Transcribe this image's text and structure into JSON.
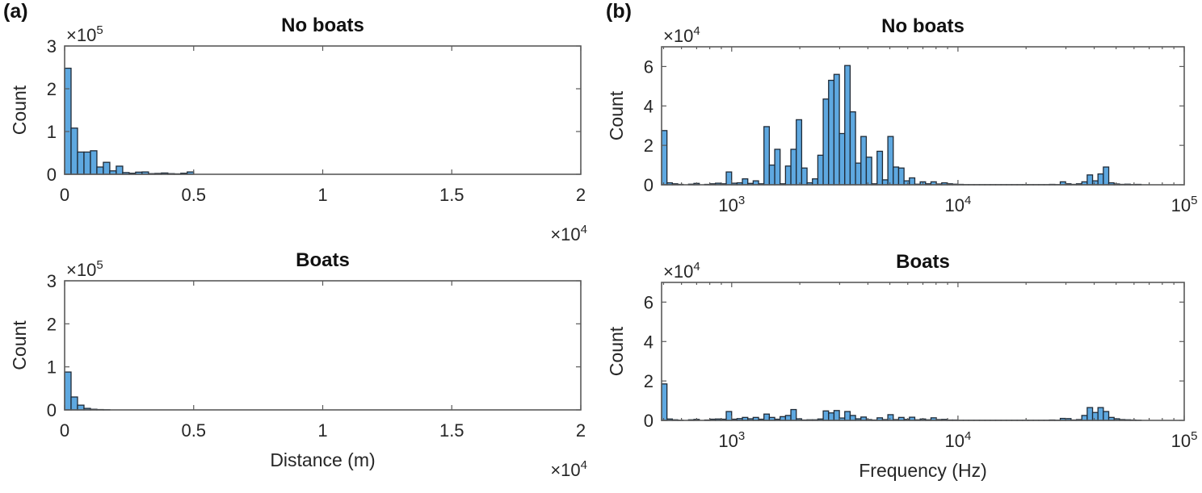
{
  "figure": {
    "panels": [
      {
        "id": "a",
        "label": "(a)"
      },
      {
        "id": "b",
        "label": "(b)"
      }
    ]
  },
  "chart_data": [
    {
      "panel": "(a)",
      "type": "bar",
      "subtype": "histogram",
      "title": "No boats",
      "xlabel": "",
      "ylabel": "Count",
      "x_scale": "linear",
      "x_exponent_label": "×10^4",
      "y_exponent_label": "×10^5",
      "xlim": [
        0,
        20000
      ],
      "ylim": [
        0,
        300000
      ],
      "xticks": [
        0,
        5000,
        10000,
        15000,
        20000
      ],
      "xtick_labels": [
        "0",
        "0.5",
        "1",
        "1.5",
        "2"
      ],
      "yticks": [
        0,
        100000,
        200000,
        300000
      ],
      "ytick_labels": [
        "0",
        "1",
        "2",
        "3"
      ],
      "bin_width": 250,
      "bin_start": 0,
      "values": [
        248000,
        108000,
        52000,
        52000,
        55000,
        17000,
        28000,
        8000,
        19000,
        4000,
        2500,
        5000,
        5500,
        1500,
        2000,
        3000,
        1500,
        1000,
        2500,
        5500
      ],
      "grid": false,
      "bar_color": "#5ea8e0"
    },
    {
      "panel": "(a)",
      "type": "bar",
      "subtype": "histogram",
      "title": "Boats",
      "xlabel": "Distance (m)",
      "ylabel": "Count",
      "x_scale": "linear",
      "x_exponent_label": "×10^4",
      "y_exponent_label": "×10^5",
      "xlim": [
        0,
        20000
      ],
      "ylim": [
        0,
        300000
      ],
      "xticks": [
        0,
        5000,
        10000,
        15000,
        20000
      ],
      "xtick_labels": [
        "0",
        "0.5",
        "1",
        "1.5",
        "2"
      ],
      "yticks": [
        0,
        100000,
        200000,
        300000
      ],
      "ytick_labels": [
        "0",
        "1",
        "2",
        "3"
      ],
      "bin_width": 250,
      "bin_start": 0,
      "values": [
        88000,
        30000,
        11000,
        3500,
        1500,
        800,
        400
      ],
      "grid": false,
      "bar_color": "#5ea8e0"
    },
    {
      "panel": "(b)",
      "type": "bar",
      "subtype": "histogram",
      "title": "No boats",
      "xlabel": "",
      "ylabel": "Count",
      "x_scale": "log",
      "y_exponent_label": "×10^4",
      "xlim": [
        490,
        100000
      ],
      "ylim": [
        0,
        70000
      ],
      "xticks": [
        1000,
        10000,
        100000
      ],
      "xtick_labels": [
        "10^3",
        "10^4",
        "10^5"
      ],
      "yticks": [
        0,
        20000,
        40000,
        60000
      ],
      "ytick_labels": [
        "0",
        "2",
        "4",
        "6"
      ],
      "bins_per_decade": 42,
      "bin_start": 490,
      "values": [
        27500,
        1000,
        500,
        200,
        0,
        300,
        700,
        0,
        200,
        500,
        800,
        500,
        6500,
        800,
        1000,
        3000,
        700,
        2000,
        500,
        29500,
        10000,
        18000,
        500,
        9500,
        18000,
        33000,
        8500,
        1000,
        3000,
        15000,
        43500,
        53000,
        56000,
        26000,
        60500,
        37000,
        11000,
        24500,
        14000,
        500,
        17000,
        2500,
        24500,
        9000,
        8500,
        2000,
        3500,
        300,
        1500,
        500,
        1500,
        400,
        1000,
        500,
        300,
        200,
        100,
        100,
        100,
        100,
        100,
        100,
        100,
        100,
        100,
        100,
        100,
        100,
        100,
        100,
        100,
        100,
        200,
        100,
        1500,
        500,
        200,
        500,
        1500,
        5000,
        2000,
        5500,
        9000,
        1000,
        400,
        200,
        300,
        100,
        200
      ],
      "grid": false,
      "bar_color": "#5ea8e0"
    },
    {
      "panel": "(b)",
      "type": "bar",
      "subtype": "histogram",
      "title": "Boats",
      "xlabel": "Frequency (Hz)",
      "ylabel": "Count",
      "x_scale": "log",
      "y_exponent_label": "×10^4",
      "xlim": [
        490,
        100000
      ],
      "ylim": [
        0,
        70000
      ],
      "xticks": [
        1000,
        10000,
        100000
      ],
      "xtick_labels": [
        "10^3",
        "10^4",
        "10^5"
      ],
      "yticks": [
        0,
        20000,
        40000,
        60000
      ],
      "ytick_labels": [
        "0",
        "2",
        "4",
        "6"
      ],
      "bins_per_decade": 42,
      "bin_start": 490,
      "values": [
        18500,
        700,
        300,
        100,
        0,
        300,
        500,
        0,
        200,
        600,
        700,
        600,
        4500,
        600,
        900,
        1500,
        800,
        1500,
        600,
        3200,
        1500,
        600,
        1900,
        2500,
        5500,
        800,
        200,
        300,
        300,
        700,
        4800,
        3800,
        5000,
        1200,
        4500,
        2500,
        800,
        1700,
        400,
        200,
        1300,
        400,
        2900,
        400,
        1500,
        500,
        1600,
        300,
        700,
        300,
        1300,
        400,
        500,
        200,
        200,
        100,
        100,
        100,
        100,
        100,
        100,
        100,
        100,
        100,
        100,
        100,
        100,
        100,
        100,
        100,
        100,
        100,
        200,
        100,
        1000,
        900,
        200,
        400,
        2500,
        6500,
        4000,
        6500,
        4500,
        1500,
        800,
        400,
        300,
        200,
        100
      ],
      "grid": false,
      "bar_color": "#5ea8e0"
    }
  ]
}
